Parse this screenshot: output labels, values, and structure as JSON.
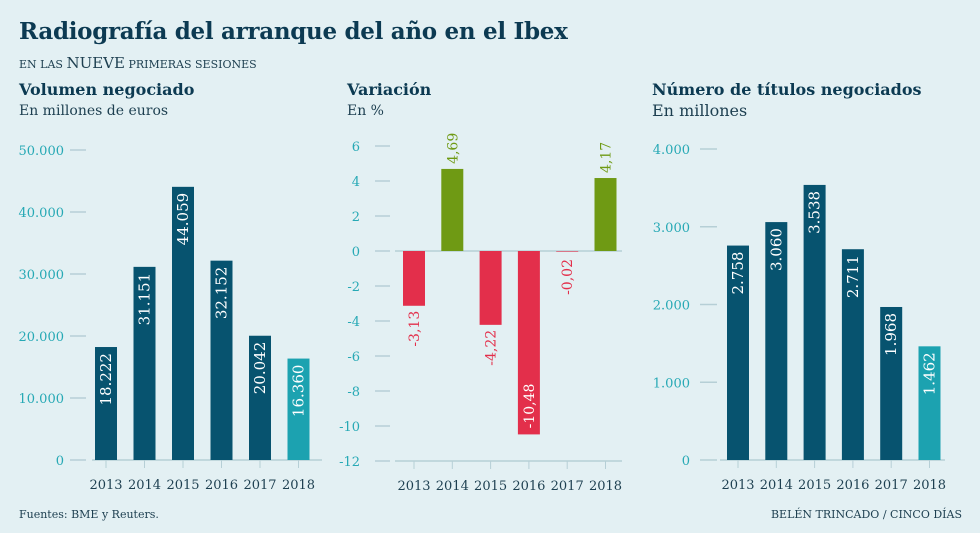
{
  "header": {
    "title": "Radiografía del arranque del año en el Ibex",
    "subtitle_pre": "EN LAS",
    "subtitle_big": "NUEVE",
    "subtitle_post": "PRIMERAS SESIONES"
  },
  "footer": {
    "source": "Fuentes: BME y Reuters.",
    "credit": "BELÉN TRINCADO / CINCO DÍAS"
  },
  "colors": {
    "bar_dark": "#07536f",
    "bar_highlight": "#1ca2b0",
    "positive": "#6f9a14",
    "negative": "#e32f4b",
    "tick": "#27a9b5",
    "axis": "#b6cfd6"
  },
  "chart_data": [
    {
      "type": "bar",
      "title": "Volumen negociado",
      "ylabel": "En millones de euros",
      "categories": [
        "2013",
        "2014",
        "2015",
        "2016",
        "2017",
        "2018"
      ],
      "values": [
        18222,
        31151,
        44059,
        32152,
        20042,
        16360
      ],
      "value_labels": [
        "18.222",
        "31.151",
        "44.059",
        "32.152",
        "20.042",
        "16.360"
      ],
      "highlight": [
        false,
        false,
        false,
        false,
        false,
        true
      ],
      "ylim": [
        0,
        50000
      ],
      "yticks": [
        0,
        10000,
        20000,
        30000,
        40000,
        50000
      ],
      "ytick_labels": [
        "0",
        "10.000",
        "20.000",
        "30.000",
        "40.000",
        "50.000"
      ],
      "grid": false
    },
    {
      "type": "bar",
      "title": "Variación",
      "ylabel": "En %",
      "categories": [
        "2013",
        "2014",
        "2015",
        "2016",
        "2017",
        "2018"
      ],
      "values": [
        -3.13,
        4.69,
        -4.22,
        -10.48,
        -0.02,
        4.17
      ],
      "value_labels": [
        "-3,13",
        "4,69",
        "-4,22",
        "-10,48",
        "-0,02",
        "4,17"
      ],
      "ylim": [
        -12,
        6
      ],
      "yticks": [
        -12,
        -10,
        -8,
        -6,
        -4,
        -2,
        0,
        2,
        4,
        6
      ],
      "ytick_labels": [
        "-12",
        "-10",
        "-8",
        "-6",
        "-4",
        "-2",
        "0",
        "2",
        "4",
        "6"
      ],
      "grid": false
    },
    {
      "type": "bar",
      "title": "Número de títulos negociados",
      "ylabel": "En millones",
      "categories": [
        "2013",
        "2014",
        "2015",
        "2016",
        "2017",
        "2018"
      ],
      "values": [
        2758,
        3060,
        3538,
        2711,
        1968,
        1462
      ],
      "value_labels": [
        "2.758",
        "3.060",
        "3.538",
        "2.711",
        "1.968",
        "1.462"
      ],
      "highlight": [
        false,
        false,
        false,
        false,
        false,
        true
      ],
      "ylim": [
        0,
        4000
      ],
      "yticks": [
        0,
        1000,
        2000,
        3000,
        4000
      ],
      "ytick_labels": [
        "0",
        "1.000",
        "2.000",
        "3.000",
        "4.000"
      ],
      "grid": false
    }
  ]
}
